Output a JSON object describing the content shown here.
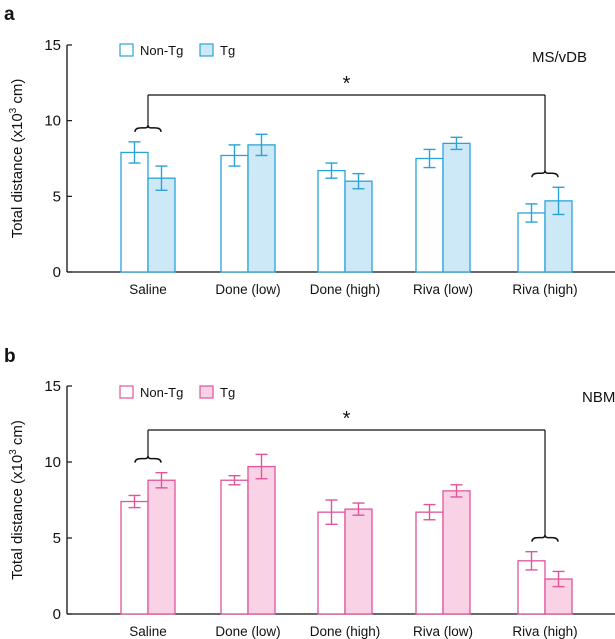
{
  "chart_data": [
    {
      "type": "bar",
      "panel": "a",
      "region": "MS/vDB",
      "ylabel_main": "Total distance (x10",
      "ylabel_sup": "3",
      "ylabel_end": " cm)",
      "ylim": [
        0,
        15
      ],
      "yticks": [
        "0",
        "5",
        "10",
        "15"
      ],
      "categories": [
        "Saline",
        "Done (low)",
        "Done (high)",
        "Riva (low)",
        "Riva (high)"
      ],
      "colors": {
        "stroke": "#2aa3d8",
        "fill": "#cde9f8"
      },
      "series": [
        {
          "name": "Non-Tg",
          "values": [
            7.9,
            7.7,
            6.7,
            7.5,
            3.9
          ],
          "errors": [
            0.7,
            0.7,
            0.5,
            0.6,
            0.6
          ]
        },
        {
          "name": "Tg",
          "values": [
            6.2,
            8.4,
            6.0,
            8.5,
            4.7
          ],
          "errors": [
            0.8,
            0.7,
            0.5,
            0.4,
            0.9
          ]
        }
      ],
      "significance": "*"
    },
    {
      "type": "bar",
      "panel": "b",
      "region": "NBM",
      "ylabel_main": "Total distance (x10",
      "ylabel_sup": "3",
      "ylabel_end": " cm)",
      "ylim": [
        0,
        15
      ],
      "yticks": [
        "0",
        "5",
        "10",
        "15"
      ],
      "categories": [
        "Saline",
        "Done (low)",
        "Done (high)",
        "Riva (low)",
        "Riva (high)"
      ],
      "colors": {
        "stroke": "#e0559a",
        "fill": "#f9d3e5"
      },
      "series": [
        {
          "name": "Non-Tg",
          "values": [
            7.4,
            8.8,
            6.7,
            6.7,
            3.5
          ],
          "errors": [
            0.4,
            0.3,
            0.8,
            0.5,
            0.6
          ]
        },
        {
          "name": "Tg",
          "values": [
            8.8,
            9.7,
            6.9,
            8.1,
            2.3
          ],
          "errors": [
            0.5,
            0.8,
            0.4,
            0.4,
            0.5
          ]
        }
      ],
      "significance": "*"
    }
  ]
}
